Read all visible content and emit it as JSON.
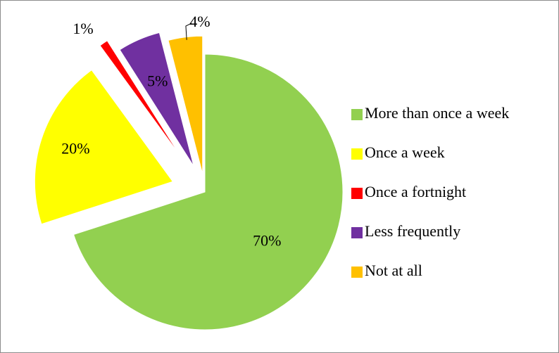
{
  "chart_data": {
    "type": "pie",
    "title": "",
    "legend": "right",
    "start_angle_deg": 90,
    "direction": "clockwise",
    "slices": [
      {
        "label": "More than once a week",
        "value": 70,
        "display": "70%",
        "color": "#92d050"
      },
      {
        "label": "Once a week",
        "value": 20,
        "display": "20%",
        "color": "#ffff00"
      },
      {
        "label": "Once a fortnight",
        "value": 1,
        "display": "1%",
        "color": "#ff0000"
      },
      {
        "label": "Less frequently",
        "value": 5,
        "display": "5%",
        "color": "#7030a0"
      },
      {
        "label": "Not at all",
        "value": 4,
        "display": "4%",
        "color": "#ffc000"
      }
    ]
  }
}
